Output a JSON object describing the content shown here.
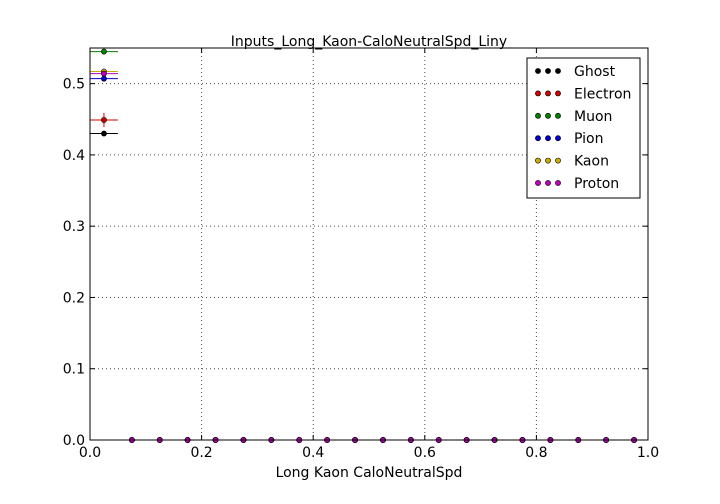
{
  "chart_data": {
    "type": "scatter",
    "title": "Inputs_Long_Kaon-CaloNeutralSpd_Liny",
    "xlabel": "Long Kaon CaloNeutralSpd",
    "ylabel": "",
    "xlim": [
      0.0,
      1.0
    ],
    "ylim": [
      0.0,
      0.55
    ],
    "xticks": [
      "0.0",
      "0.2",
      "0.4",
      "0.6",
      "0.8",
      "1.0"
    ],
    "yticks": [
      "0.0",
      "0.1",
      "0.2",
      "0.3",
      "0.4",
      "0.5"
    ],
    "grid": true,
    "grid_style": "dotted",
    "legend_position": "top-right",
    "bin_width": 0.05,
    "x": [
      0.025,
      0.075,
      0.125,
      0.175,
      0.225,
      0.275,
      0.325,
      0.375,
      0.425,
      0.475,
      0.525,
      0.575,
      0.625,
      0.675,
      0.725,
      0.775,
      0.825,
      0.875,
      0.925,
      0.975
    ],
    "series": [
      {
        "name": "Ghost",
        "color": "#000000",
        "values": [
          0.43,
          0,
          0,
          0,
          0,
          0,
          0,
          0,
          0,
          0,
          0,
          0,
          0,
          0,
          0,
          0,
          0,
          0,
          0,
          0
        ],
        "yerr": [
          0.002,
          0,
          0,
          0,
          0,
          0,
          0,
          0,
          0,
          0,
          0,
          0,
          0,
          0,
          0,
          0,
          0,
          0,
          0,
          0
        ]
      },
      {
        "name": "Electron",
        "color": "#cc0000",
        "values": [
          0.449,
          0,
          0,
          0,
          0,
          0,
          0,
          0,
          0,
          0,
          0,
          0,
          0,
          0,
          0,
          0,
          0,
          0,
          0,
          0
        ],
        "yerr": [
          0.01,
          0,
          0,
          0,
          0,
          0,
          0,
          0,
          0,
          0,
          0,
          0,
          0,
          0,
          0,
          0,
          0,
          0,
          0,
          0
        ]
      },
      {
        "name": "Muon",
        "color": "#007f00",
        "values": [
          0.545,
          0,
          0,
          0,
          0,
          0,
          0,
          0,
          0,
          0,
          0,
          0,
          0,
          0,
          0,
          0,
          0,
          0,
          0,
          0
        ],
        "yerr": [
          0.003,
          0,
          0,
          0,
          0,
          0,
          0,
          0,
          0,
          0,
          0,
          0,
          0,
          0,
          0,
          0,
          0,
          0,
          0,
          0
        ]
      },
      {
        "name": "Pion",
        "color": "#0000cc",
        "values": [
          0.507,
          0,
          0,
          0,
          0,
          0,
          0,
          0,
          0,
          0,
          0,
          0,
          0,
          0,
          0,
          0,
          0,
          0,
          0,
          0
        ],
        "yerr": [
          0.002,
          0,
          0,
          0,
          0,
          0,
          0,
          0,
          0,
          0,
          0,
          0,
          0,
          0,
          0,
          0,
          0,
          0,
          0,
          0
        ]
      },
      {
        "name": "Kaon",
        "color": "#ccaa00",
        "values": [
          0.517,
          0,
          0,
          0,
          0,
          0,
          0,
          0,
          0,
          0,
          0,
          0,
          0,
          0,
          0,
          0,
          0,
          0,
          0,
          0
        ],
        "yerr": [
          0.002,
          0,
          0,
          0,
          0,
          0,
          0,
          0,
          0,
          0,
          0,
          0,
          0,
          0,
          0,
          0,
          0,
          0,
          0,
          0
        ]
      },
      {
        "name": "Proton",
        "color": "#bb00bb",
        "values": [
          0.514,
          0,
          0,
          0,
          0,
          0,
          0,
          0,
          0,
          0,
          0,
          0,
          0,
          0,
          0,
          0,
          0,
          0,
          0,
          0
        ],
        "yerr": [
          0.002,
          0,
          0,
          0,
          0,
          0,
          0,
          0,
          0,
          0,
          0,
          0,
          0,
          0,
          0,
          0,
          0,
          0,
          0,
          0
        ]
      }
    ]
  }
}
